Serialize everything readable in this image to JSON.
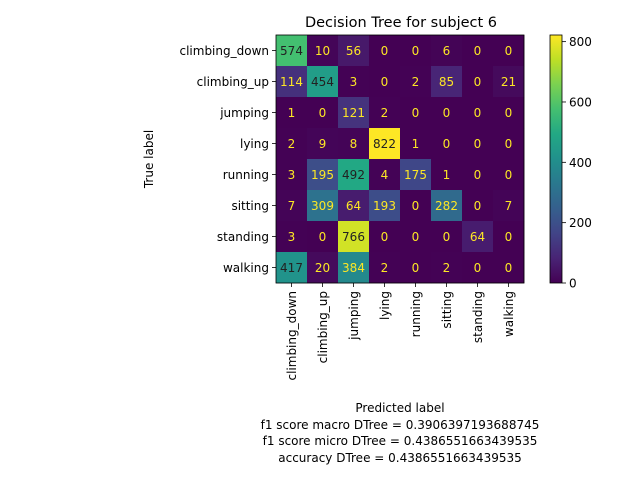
{
  "chart_data": {
    "type": "heatmap",
    "title": "Decision Tree for subject 6",
    "ylabel": "True label",
    "xlabel_lines": [
      "Predicted label",
      "f1 score macro DTree = 0.3906397193688745",
      "f1 score micro DTree = 0.4386551663439535",
      "accuracy DTree = 0.4386551663439535"
    ],
    "row_labels": [
      "climbing_down",
      "climbing_up",
      "jumping",
      "lying",
      "running",
      "sitting",
      "standing",
      "walking"
    ],
    "col_labels": [
      "climbing_down",
      "climbing_up",
      "jumping",
      "lying",
      "running",
      "sitting",
      "standing",
      "walking"
    ],
    "matrix": [
      [
        574,
        10,
        56,
        0,
        0,
        6,
        0,
        0
      ],
      [
        114,
        454,
        3,
        0,
        2,
        85,
        0,
        21
      ],
      [
        1,
        0,
        121,
        2,
        0,
        0,
        0,
        0
      ],
      [
        2,
        9,
        8,
        822,
        1,
        0,
        0,
        0
      ],
      [
        3,
        195,
        492,
        4,
        175,
        1,
        0,
        0
      ],
      [
        7,
        309,
        64,
        193,
        0,
        282,
        0,
        7
      ],
      [
        3,
        0,
        766,
        0,
        0,
        0,
        64,
        0
      ],
      [
        417,
        20,
        384,
        2,
        0,
        2,
        0,
        0
      ]
    ],
    "colormap": "viridis",
    "vmin": 0,
    "vmax": 822,
    "colorbar_ticks": [
      0,
      200,
      400,
      600,
      800
    ]
  }
}
